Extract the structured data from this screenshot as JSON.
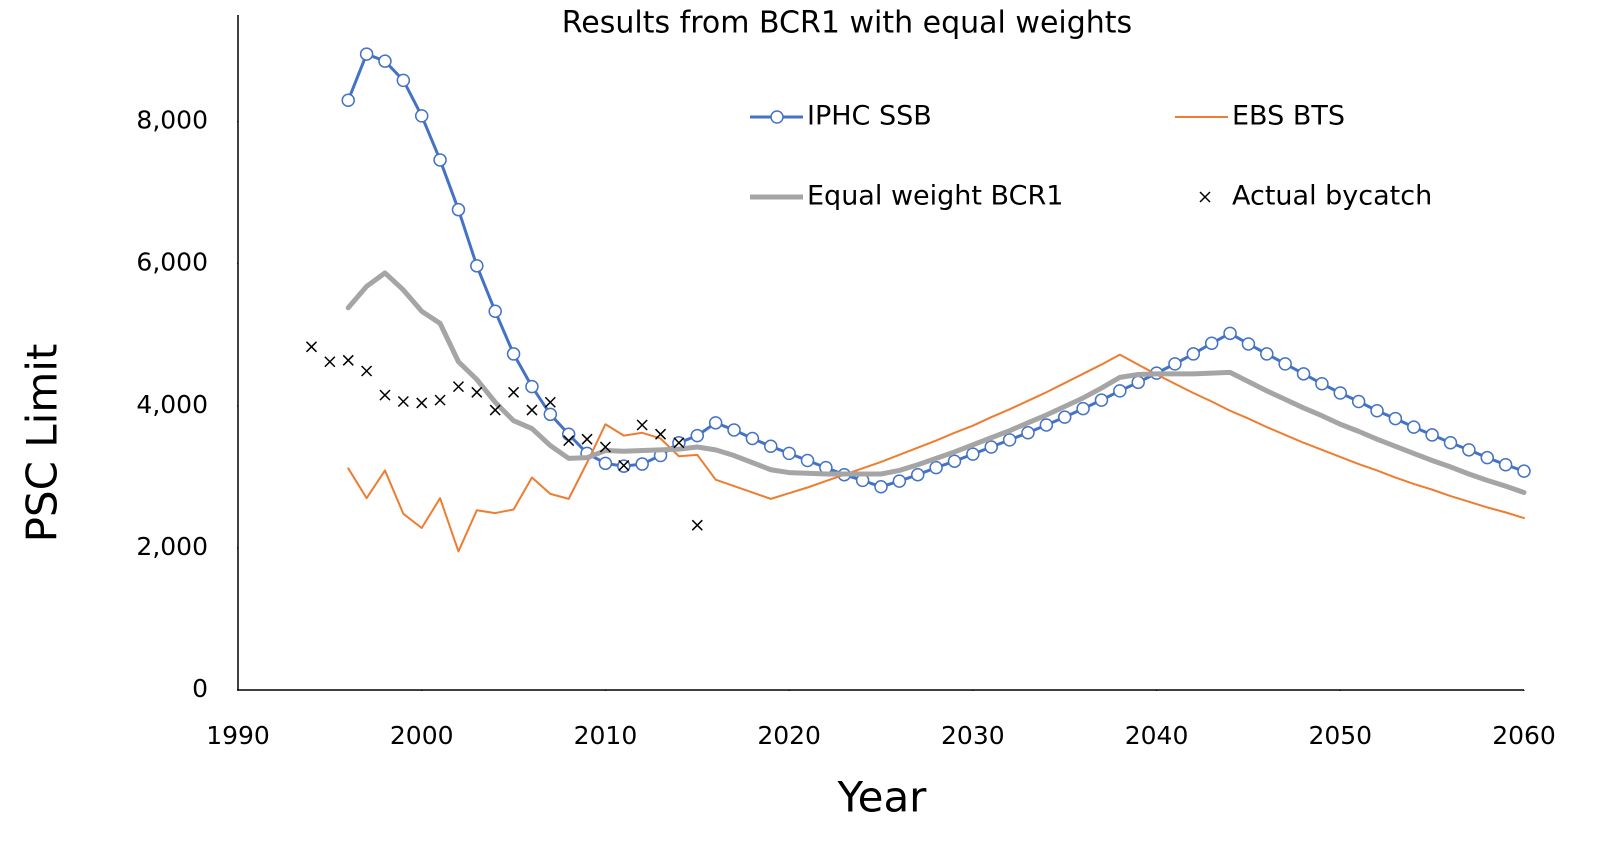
{
  "chart_data": {
    "type": "line",
    "title": "Results from BCR1 with equal weights",
    "x_label": "Year",
    "y_label": "PSC Limit",
    "x": [
      1994,
      1995,
      1996,
      1997,
      1998,
      1999,
      2000,
      2001,
      2002,
      2003,
      2004,
      2005,
      2006,
      2007,
      2008,
      2009,
      2010,
      2011,
      2012,
      2013,
      2014,
      2015,
      2016,
      2017,
      2018,
      2019,
      2020,
      2021,
      2022,
      2023,
      2024,
      2025,
      2026,
      2027,
      2028,
      2029,
      2030,
      2031,
      2032,
      2033,
      2034,
      2035,
      2036,
      2037,
      2038,
      2039,
      2040,
      2041,
      2042,
      2043,
      2044,
      2045,
      2046,
      2047,
      2048,
      2049,
      2050,
      2051,
      2052,
      2053,
      2054,
      2055,
      2056,
      2057,
      2058,
      2059,
      2060
    ],
    "xlim": [
      1990,
      2060
    ],
    "xticks": [
      1990,
      2000,
      2010,
      2020,
      2030,
      2040,
      2050,
      2060
    ],
    "ylim": [
      0,
      9500
    ],
    "yticks": [
      0,
      {
        "value": 2000,
        "label": "2,000"
      },
      {
        "value": 4000,
        "label": "4,000"
      },
      {
        "value": 6000,
        "label": "6,000"
      },
      {
        "value": 8000,
        "label": "8,000"
      }
    ],
    "grid": false,
    "series": [
      {
        "name": "IPHC SSB",
        "color": "#4472c4",
        "kind": "line",
        "marker": "circle",
        "width": 3,
        "values": [
          null,
          null,
          8300,
          8950,
          8850,
          8580,
          8080,
          7460,
          6760,
          5970,
          5330,
          4730,
          4270,
          3880,
          3600,
          3330,
          3190,
          3150,
          3180,
          3300,
          3480,
          3580,
          3760,
          3660,
          3540,
          3430,
          3330,
          3230,
          3130,
          3030,
          2950,
          2860,
          2940,
          3030,
          3130,
          3220,
          3320,
          3420,
          3520,
          3620,
          3730,
          3840,
          3960,
          4080,
          4210,
          4330,
          4460,
          4590,
          4730,
          4880,
          5020,
          4870,
          4730,
          4590,
          4450,
          4310,
          4180,
          4060,
          3930,
          3820,
          3700,
          3590,
          3480,
          3380,
          3270,
          3170,
          3080
        ]
      },
      {
        "name": "EBS BTS",
        "color": "#ed7d31",
        "kind": "line",
        "width": 2,
        "values": [
          null,
          null,
          3120,
          2700,
          3090,
          2480,
          2280,
          2700,
          1950,
          2530,
          2490,
          2540,
          2990,
          2760,
          2690,
          3200,
          3740,
          3580,
          3620,
          3540,
          3290,
          3310,
          2960,
          2870,
          2780,
          2690,
          2770,
          2850,
          2940,
          3030,
          3120,
          3210,
          3310,
          3410,
          3510,
          3620,
          3720,
          3840,
          3950,
          4070,
          4190,
          4320,
          4450,
          4580,
          4720,
          4580,
          4440,
          4310,
          4180,
          4060,
          3930,
          3820,
          3700,
          3590,
          3480,
          3380,
          3280,
          3180,
          3090,
          2990,
          2900,
          2820,
          2730,
          2650,
          2570,
          2500,
          2420
        ]
      },
      {
        "name": "Equal weight BCR1",
        "color": "#a5a5a5",
        "kind": "line",
        "width": 5,
        "values": [
          null,
          null,
          5380,
          5680,
          5870,
          5630,
          5330,
          5160,
          4620,
          4370,
          4050,
          3790,
          3680,
          3440,
          3260,
          3270,
          3370,
          3360,
          3370,
          3380,
          3390,
          3420,
          3380,
          3300,
          3200,
          3100,
          3060,
          3050,
          3040,
          3040,
          3040,
          3040,
          3090,
          3170,
          3260,
          3350,
          3450,
          3550,
          3650,
          3760,
          3870,
          3990,
          4110,
          4250,
          4400,
          4440,
          4450,
          4450,
          4450,
          4460,
          4470,
          4340,
          4210,
          4090,
          3970,
          3860,
          3740,
          3640,
          3530,
          3430,
          3330,
          3230,
          3140,
          3040,
          2950,
          2870,
          2780
        ]
      },
      {
        "name": "Actual bycatch",
        "color": "#000000",
        "kind": "scatter",
        "marker": "x",
        "values": [
          4830,
          4620,
          4640,
          4490,
          4150,
          4060,
          4040,
          4080,
          4270,
          4190,
          3940,
          4190,
          3940,
          4050,
          3510,
          3530,
          3420,
          3160,
          3730,
          3600,
          3480,
          2320,
          null,
          null,
          null,
          null,
          null,
          null,
          null,
          null,
          null,
          null,
          null,
          null,
          null,
          null,
          null,
          null,
          null,
          null,
          null,
          null,
          null,
          null,
          null,
          null,
          null,
          null,
          null,
          null,
          null,
          null,
          null,
          null,
          null,
          null,
          null,
          null,
          null,
          null,
          null,
          null,
          null,
          null,
          null,
          null,
          null
        ]
      }
    ]
  }
}
